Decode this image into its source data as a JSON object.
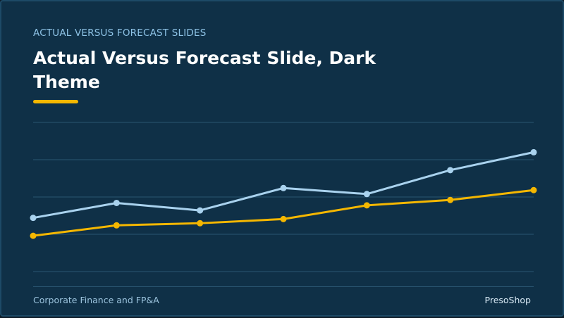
{
  "slide": {
    "eyebrow": "ACTUAL VERSUS FORECAST SLIDES",
    "title": "Actual Versus Forecast Slide, Dark Theme",
    "footer_left": "Corporate Finance and FP&A",
    "footer_right": "PresoShop"
  },
  "colors": {
    "background": "#0f3047",
    "gridline": "#2a5672",
    "accent": "#f5b700",
    "series_light": "#a9d2ee",
    "series_gold": "#f5b700"
  },
  "chart_data": {
    "type": "line",
    "title": "",
    "xlabel": "",
    "ylabel": "",
    "x": [
      1,
      2,
      3,
      4,
      5,
      6,
      7
    ],
    "ylim": [
      0,
      50
    ],
    "grid": true,
    "legend": "none",
    "series": [
      {
        "color": "#a9d2ee",
        "values": [
          18,
          23,
          20.5,
          28,
          26,
          34,
          40
        ]
      },
      {
        "color": "#f5b700",
        "values": [
          12,
          15.5,
          16.2,
          17.6,
          22.2,
          24,
          27.3
        ]
      }
    ]
  }
}
